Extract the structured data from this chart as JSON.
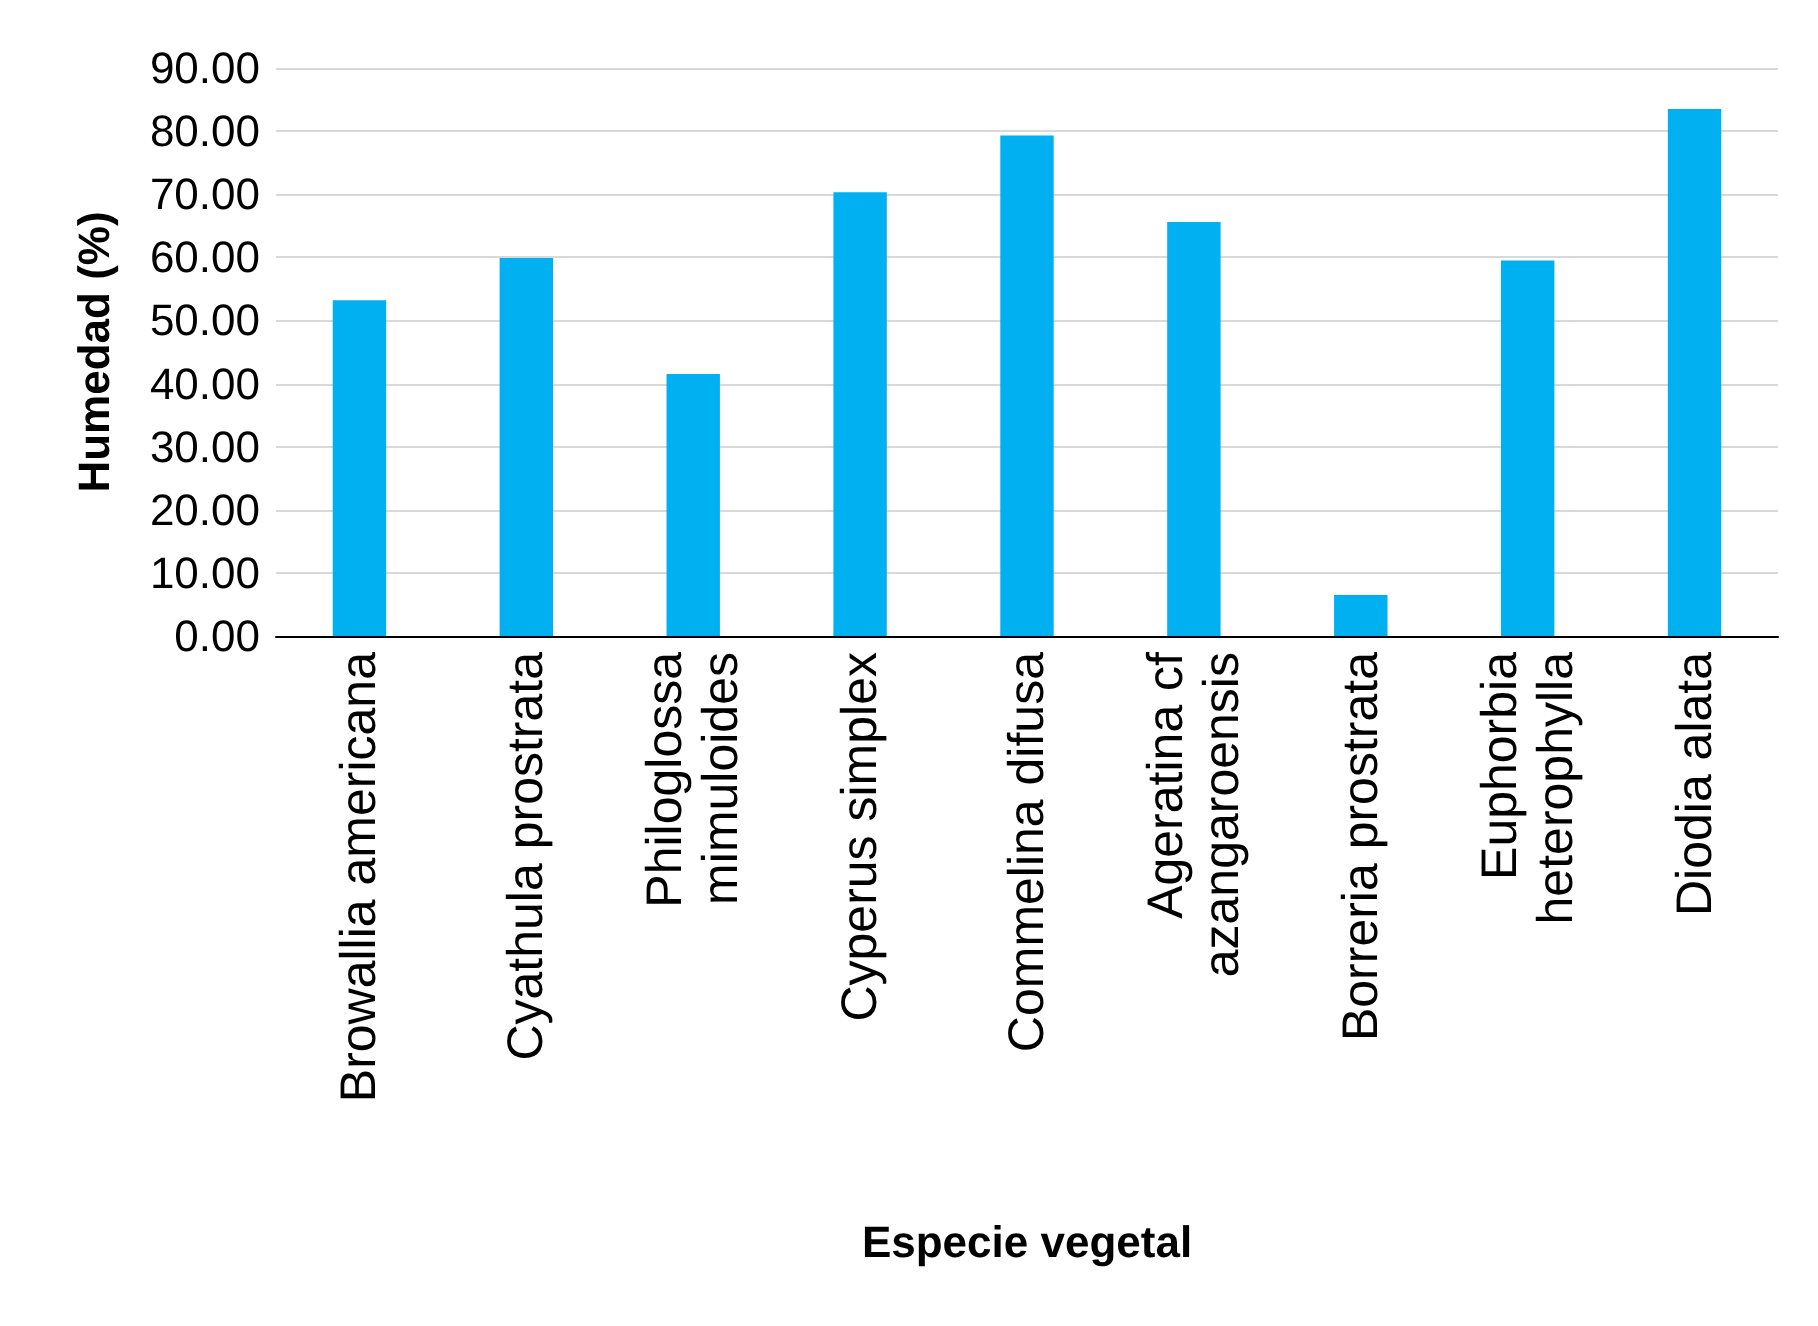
{
  "chart_data": {
    "type": "bar",
    "xlabel": "Especie vegetal",
    "ylabel": "Humedad (%)",
    "categories": [
      "Browallia americana",
      "Cyathula prostrata",
      "Philoglossa\nmimuloides",
      "Cyperus simplex",
      "Commelina difusa",
      "Ageratina cf\nazangaroensis",
      "Borreria prostrata",
      "Euphorbia\nheterophylla",
      "Diodia alata"
    ],
    "values": [
      53.2,
      59.9,
      41.5,
      70.3,
      79.3,
      65.6,
      6.5,
      59.5,
      83.5
    ],
    "color": "#00b0f0",
    "ylim": [
      0,
      90
    ],
    "yticks": [
      {
        "value": 0,
        "label": "0.00"
      },
      {
        "value": 10,
        "label": "10.00"
      },
      {
        "value": 20,
        "label": "20.00"
      },
      {
        "value": 30,
        "label": "30.00"
      },
      {
        "value": 40,
        "label": "40.00"
      },
      {
        "value": 50,
        "label": "50.00"
      },
      {
        "value": 60,
        "label": "60.00"
      },
      {
        "value": 70,
        "label": "70.00"
      },
      {
        "value": 80,
        "label": "80.00"
      },
      {
        "value": 90,
        "label": "90.00"
      }
    ],
    "grid": "y"
  }
}
